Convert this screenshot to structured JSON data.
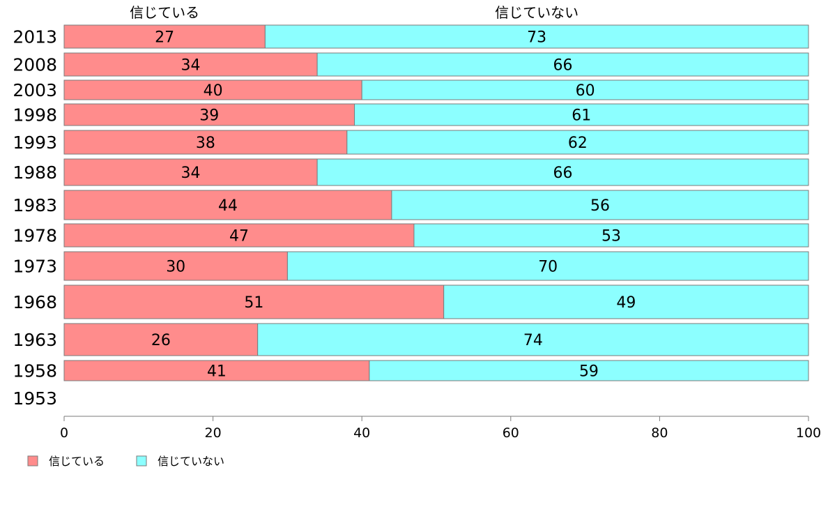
{
  "chart_data": {
    "type": "bar",
    "orientation": "horizontal",
    "stacked": true,
    "categories": [
      "2013",
      "2008",
      "2003",
      "1998",
      "1993",
      "1988",
      "1983",
      "1978",
      "1973",
      "1968",
      "1963",
      "1958",
      "1953"
    ],
    "series": [
      {
        "name": "信じている",
        "color": "#FF8C8C",
        "values": [
          27,
          34,
          40,
          39,
          38,
          34,
          44,
          47,
          30,
          51,
          26,
          41,
          null
        ]
      },
      {
        "name": "信じていない",
        "color": "#8CFFFF",
        "values": [
          73,
          66,
          60,
          61,
          62,
          66,
          56,
          53,
          70,
          49,
          74,
          59,
          null
        ]
      }
    ],
    "column_headers": [
      "信じている",
      "信じていない"
    ],
    "xlim": [
      0,
      100
    ],
    "xticks": [
      0,
      20,
      40,
      60,
      80,
      100
    ],
    "grid": false,
    "legend_position": "bottom-left",
    "title": "",
    "xlabel": "",
    "ylabel": ""
  }
}
